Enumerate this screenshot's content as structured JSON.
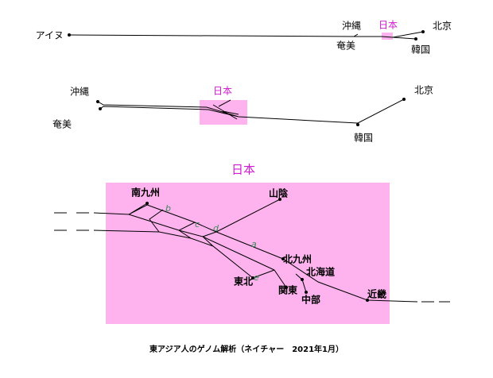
{
  "panel1": {
    "labels": [
      "アイヌ",
      "沖縄",
      "奄美",
      "日本",
      "北京",
      "韓国"
    ]
  },
  "panel2": {
    "labels": [
      "沖縄",
      "奄美",
      "日本",
      "北京",
      "韓国"
    ]
  },
  "panel3": {
    "title": "日本",
    "labels": [
      "南九州",
      "山陰",
      "北九州",
      "北海道",
      "東北",
      "関東",
      "中部",
      "近畿"
    ],
    "edge_labels": [
      "b",
      "c",
      "d",
      "a",
      "e"
    ]
  },
  "caption": "東アジア人のゲノム解析（ネイチャー　2021年1月）"
}
